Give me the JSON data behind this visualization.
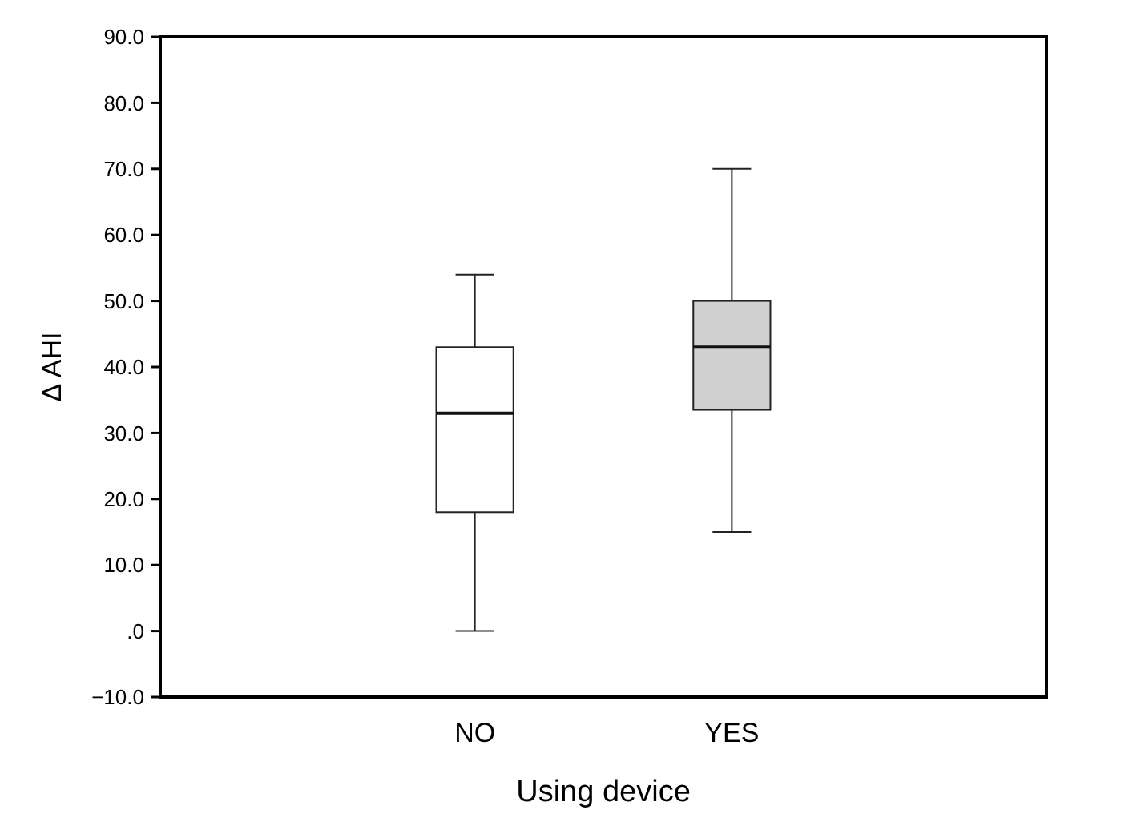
{
  "chart_data": {
    "type": "box",
    "xlabel": "Using device",
    "ylabel": "Δ AHI",
    "categories": [
      "NO",
      "YES"
    ],
    "boxes": [
      {
        "low": 0,
        "q1": 18,
        "median": 33,
        "q3": 43,
        "high": 54
      },
      {
        "low": 15,
        "q1": 33.5,
        "median": 43,
        "q3": 50,
        "high": 70
      }
    ],
    "colors": [
      "#ffffff",
      "#d0d0d0"
    ],
    "ylim": [
      -10,
      90
    ],
    "yticks": [
      {
        "value": -10,
        "label": "−10.0"
      },
      {
        "value": 0,
        "label": ".0"
      },
      {
        "value": 10,
        "label": "10.0"
      },
      {
        "value": 20,
        "label": "20.0"
      },
      {
        "value": 30,
        "label": "30.0"
      },
      {
        "value": 40,
        "label": "40.0"
      },
      {
        "value": 50,
        "label": "50.0"
      },
      {
        "value": 60,
        "label": "60.0"
      },
      {
        "value": 70,
        "label": "70.0"
      },
      {
        "value": 80,
        "label": "80.0"
      },
      {
        "value": 90,
        "label": "90.0"
      }
    ],
    "grid": false
  }
}
